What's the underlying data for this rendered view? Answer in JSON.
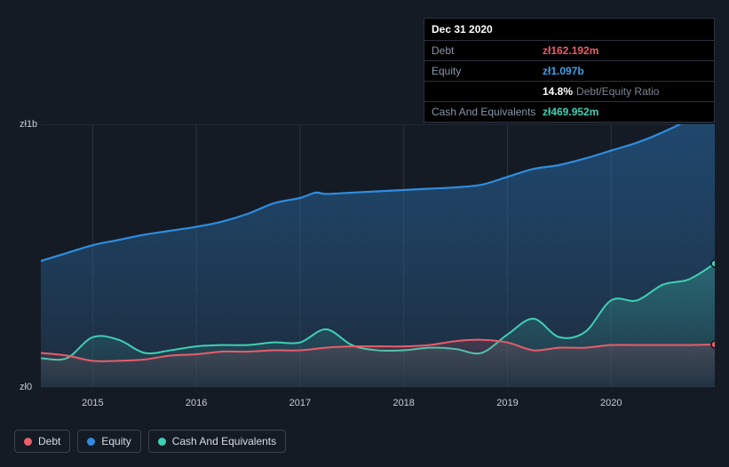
{
  "tooltip": {
    "date": "Dec 31 2020",
    "rows": [
      {
        "label": "Debt",
        "value": "zł162.192m",
        "class": "val-debt"
      },
      {
        "label": "Equity",
        "value": "zł1.097b",
        "class": "val-equity"
      },
      {
        "label": "",
        "value": "14.8%",
        "suffix": "Debt/Equity Ratio",
        "class": "val-ratio"
      },
      {
        "label": "Cash And Equivalents",
        "value": "zł469.952m",
        "class": "val-cash"
      }
    ]
  },
  "chart": {
    "background": "#151b24",
    "plot_bg_top": "#1f3145",
    "plot_bg_bottom": "#1a232e",
    "grid_color": "#2a323e",
    "ylim": [
      0,
      1000
    ],
    "ylabels": [
      {
        "v": 1000,
        "text": "zł1b"
      },
      {
        "v": 0,
        "text": "zł0"
      }
    ],
    "xrange": [
      2014.5,
      2021.0
    ],
    "xticks": [
      2015,
      2016,
      2017,
      2018,
      2019,
      2020
    ],
    "series": {
      "equity": {
        "color": "#2e8de0",
        "fill": true,
        "fill_gradient_top": "rgba(46,141,224,0.40)",
        "fill_gradient_bottom": "rgba(36,56,78,0.55)",
        "width": 2.2,
        "points": [
          [
            2014.5,
            480
          ],
          [
            2014.75,
            510
          ],
          [
            2015.0,
            540
          ],
          [
            2015.25,
            560
          ],
          [
            2015.5,
            580
          ],
          [
            2015.75,
            595
          ],
          [
            2016.0,
            610
          ],
          [
            2016.25,
            630
          ],
          [
            2016.5,
            660
          ],
          [
            2016.75,
            700
          ],
          [
            2017.0,
            720
          ],
          [
            2017.15,
            740
          ],
          [
            2017.25,
            735
          ],
          [
            2017.5,
            740
          ],
          [
            2017.75,
            745
          ],
          [
            2018.0,
            750
          ],
          [
            2018.25,
            755
          ],
          [
            2018.5,
            760
          ],
          [
            2018.75,
            770
          ],
          [
            2019.0,
            800
          ],
          [
            2019.25,
            830
          ],
          [
            2019.5,
            845
          ],
          [
            2019.75,
            870
          ],
          [
            2020.0,
            900
          ],
          [
            2020.25,
            930
          ],
          [
            2020.5,
            970
          ],
          [
            2020.75,
            1020
          ],
          [
            2021.0,
            1097
          ]
        ],
        "end_marker": true
      },
      "cash": {
        "color": "#3fcfb5",
        "fill": true,
        "fill_gradient_top": "rgba(63,207,181,0.30)",
        "fill_gradient_bottom": "rgba(63,207,181,0.04)",
        "width": 2.0,
        "points": [
          [
            2014.5,
            110
          ],
          [
            2014.75,
            110
          ],
          [
            2015.0,
            190
          ],
          [
            2015.25,
            180
          ],
          [
            2015.5,
            130
          ],
          [
            2015.75,
            140
          ],
          [
            2016.0,
            155
          ],
          [
            2016.25,
            160
          ],
          [
            2016.5,
            160
          ],
          [
            2016.75,
            170
          ],
          [
            2017.0,
            170
          ],
          [
            2017.25,
            220
          ],
          [
            2017.5,
            160
          ],
          [
            2017.75,
            140
          ],
          [
            2018.0,
            140
          ],
          [
            2018.25,
            150
          ],
          [
            2018.5,
            145
          ],
          [
            2018.75,
            130
          ],
          [
            2019.0,
            200
          ],
          [
            2019.25,
            260
          ],
          [
            2019.5,
            190
          ],
          [
            2019.75,
            210
          ],
          [
            2020.0,
            330
          ],
          [
            2020.25,
            330
          ],
          [
            2020.5,
            390
          ],
          [
            2020.75,
            410
          ],
          [
            2021.0,
            470
          ]
        ],
        "end_marker": true
      },
      "debt": {
        "color": "#e85d6b",
        "fill": true,
        "fill_gradient_top": "rgba(232,93,107,0.18)",
        "fill_gradient_bottom": "rgba(232,93,107,0.02)",
        "width": 2.0,
        "points": [
          [
            2014.5,
            130
          ],
          [
            2014.75,
            120
          ],
          [
            2015.0,
            100
          ],
          [
            2015.25,
            100
          ],
          [
            2015.5,
            105
          ],
          [
            2015.75,
            120
          ],
          [
            2016.0,
            125
          ],
          [
            2016.25,
            135
          ],
          [
            2016.5,
            135
          ],
          [
            2016.75,
            140
          ],
          [
            2017.0,
            140
          ],
          [
            2017.25,
            150
          ],
          [
            2017.5,
            155
          ],
          [
            2017.75,
            155
          ],
          [
            2018.0,
            155
          ],
          [
            2018.25,
            160
          ],
          [
            2018.5,
            175
          ],
          [
            2018.75,
            180
          ],
          [
            2019.0,
            170
          ],
          [
            2019.25,
            140
          ],
          [
            2019.5,
            150
          ],
          [
            2019.75,
            150
          ],
          [
            2020.0,
            160
          ],
          [
            2020.25,
            160
          ],
          [
            2020.5,
            160
          ],
          [
            2020.75,
            160
          ],
          [
            2021.0,
            162
          ]
        ],
        "end_marker": true
      }
    }
  },
  "legend": [
    {
      "label": "Debt",
      "color": "#e85d6b"
    },
    {
      "label": "Equity",
      "color": "#2e8de0"
    },
    {
      "label": "Cash And Equivalents",
      "color": "#3fcfb5"
    }
  ]
}
